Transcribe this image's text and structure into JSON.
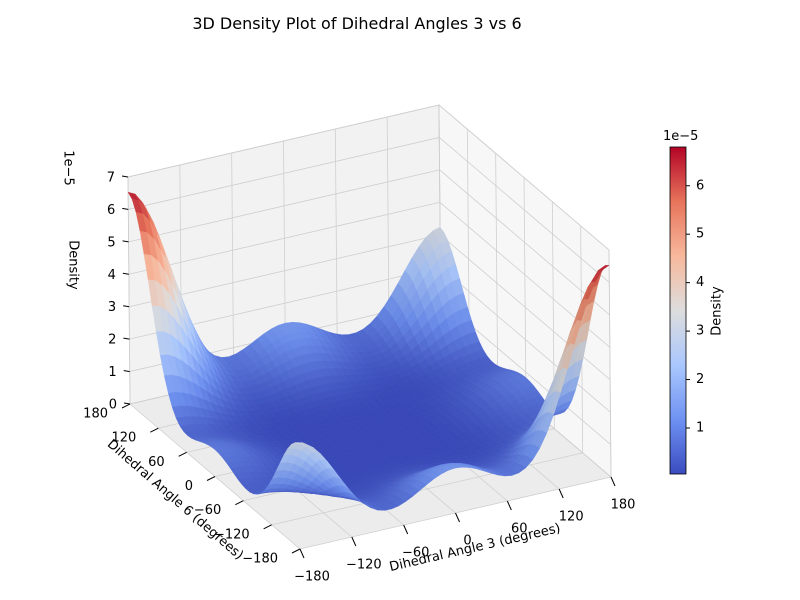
{
  "chart_data": {
    "type": "surface3d",
    "title": "3D Density Plot of Dihedral Angles 3 vs 6",
    "xlabel": "Dihedral Angle 3 (degrees)",
    "ylabel": "Dihedral Angle 6 (degrees)",
    "zlabel": "Density",
    "z_offset_text": "1e−5",
    "xlim": [
      -180,
      180
    ],
    "ylim": [
      -180,
      180
    ],
    "zlim": [
      0,
      7
    ],
    "x_ticks": [
      "−180",
      "−120",
      "−60",
      "0",
      "60",
      "120",
      "180"
    ],
    "x_tick_values": [
      -180,
      -120,
      -60,
      0,
      60,
      120,
      180
    ],
    "y_ticks": [
      "−180",
      "−120",
      "−60",
      "0",
      "60",
      "120",
      "180"
    ],
    "y_tick_values": [
      -180,
      -120,
      -60,
      0,
      60,
      120,
      180
    ],
    "z_ticks": [
      "0",
      "1",
      "2",
      "3",
      "4",
      "5",
      "6",
      "7"
    ],
    "z_tick_values": [
      0,
      1,
      2,
      3,
      4,
      5,
      6,
      7
    ],
    "colormap": "coolwarm",
    "colormap_stops": [
      "#3b4cc0",
      "#6f92f3",
      "#aac7fd",
      "#dddddd",
      "#f7b89c",
      "#e7745b",
      "#b40426"
    ],
    "peaks": [
      {
        "x": -180,
        "y": 180,
        "density": 6.5
      },
      {
        "x": 180,
        "y": -180,
        "density": 6.5
      },
      {
        "x": -180,
        "y": -180,
        "density": 3.2
      },
      {
        "x": 180,
        "y": 180,
        "density": 3.2
      },
      {
        "x": 0,
        "y": 180,
        "density": 1.35
      },
      {
        "x": 0,
        "y": -180,
        "density": 1.35
      },
      {
        "x": -180,
        "y": 0,
        "density": 0.8
      },
      {
        "x": 180,
        "y": 0,
        "density": 0.8
      }
    ],
    "peak_width_deg": 45,
    "colorbar": {
      "label": "Density",
      "offset_text": "1e−5",
      "range": [
        0.05,
        6.8
      ],
      "ticks": [
        "1",
        "2",
        "3",
        "4",
        "5",
        "6"
      ],
      "tick_values": [
        1,
        2,
        3,
        4,
        5,
        6
      ]
    }
  }
}
